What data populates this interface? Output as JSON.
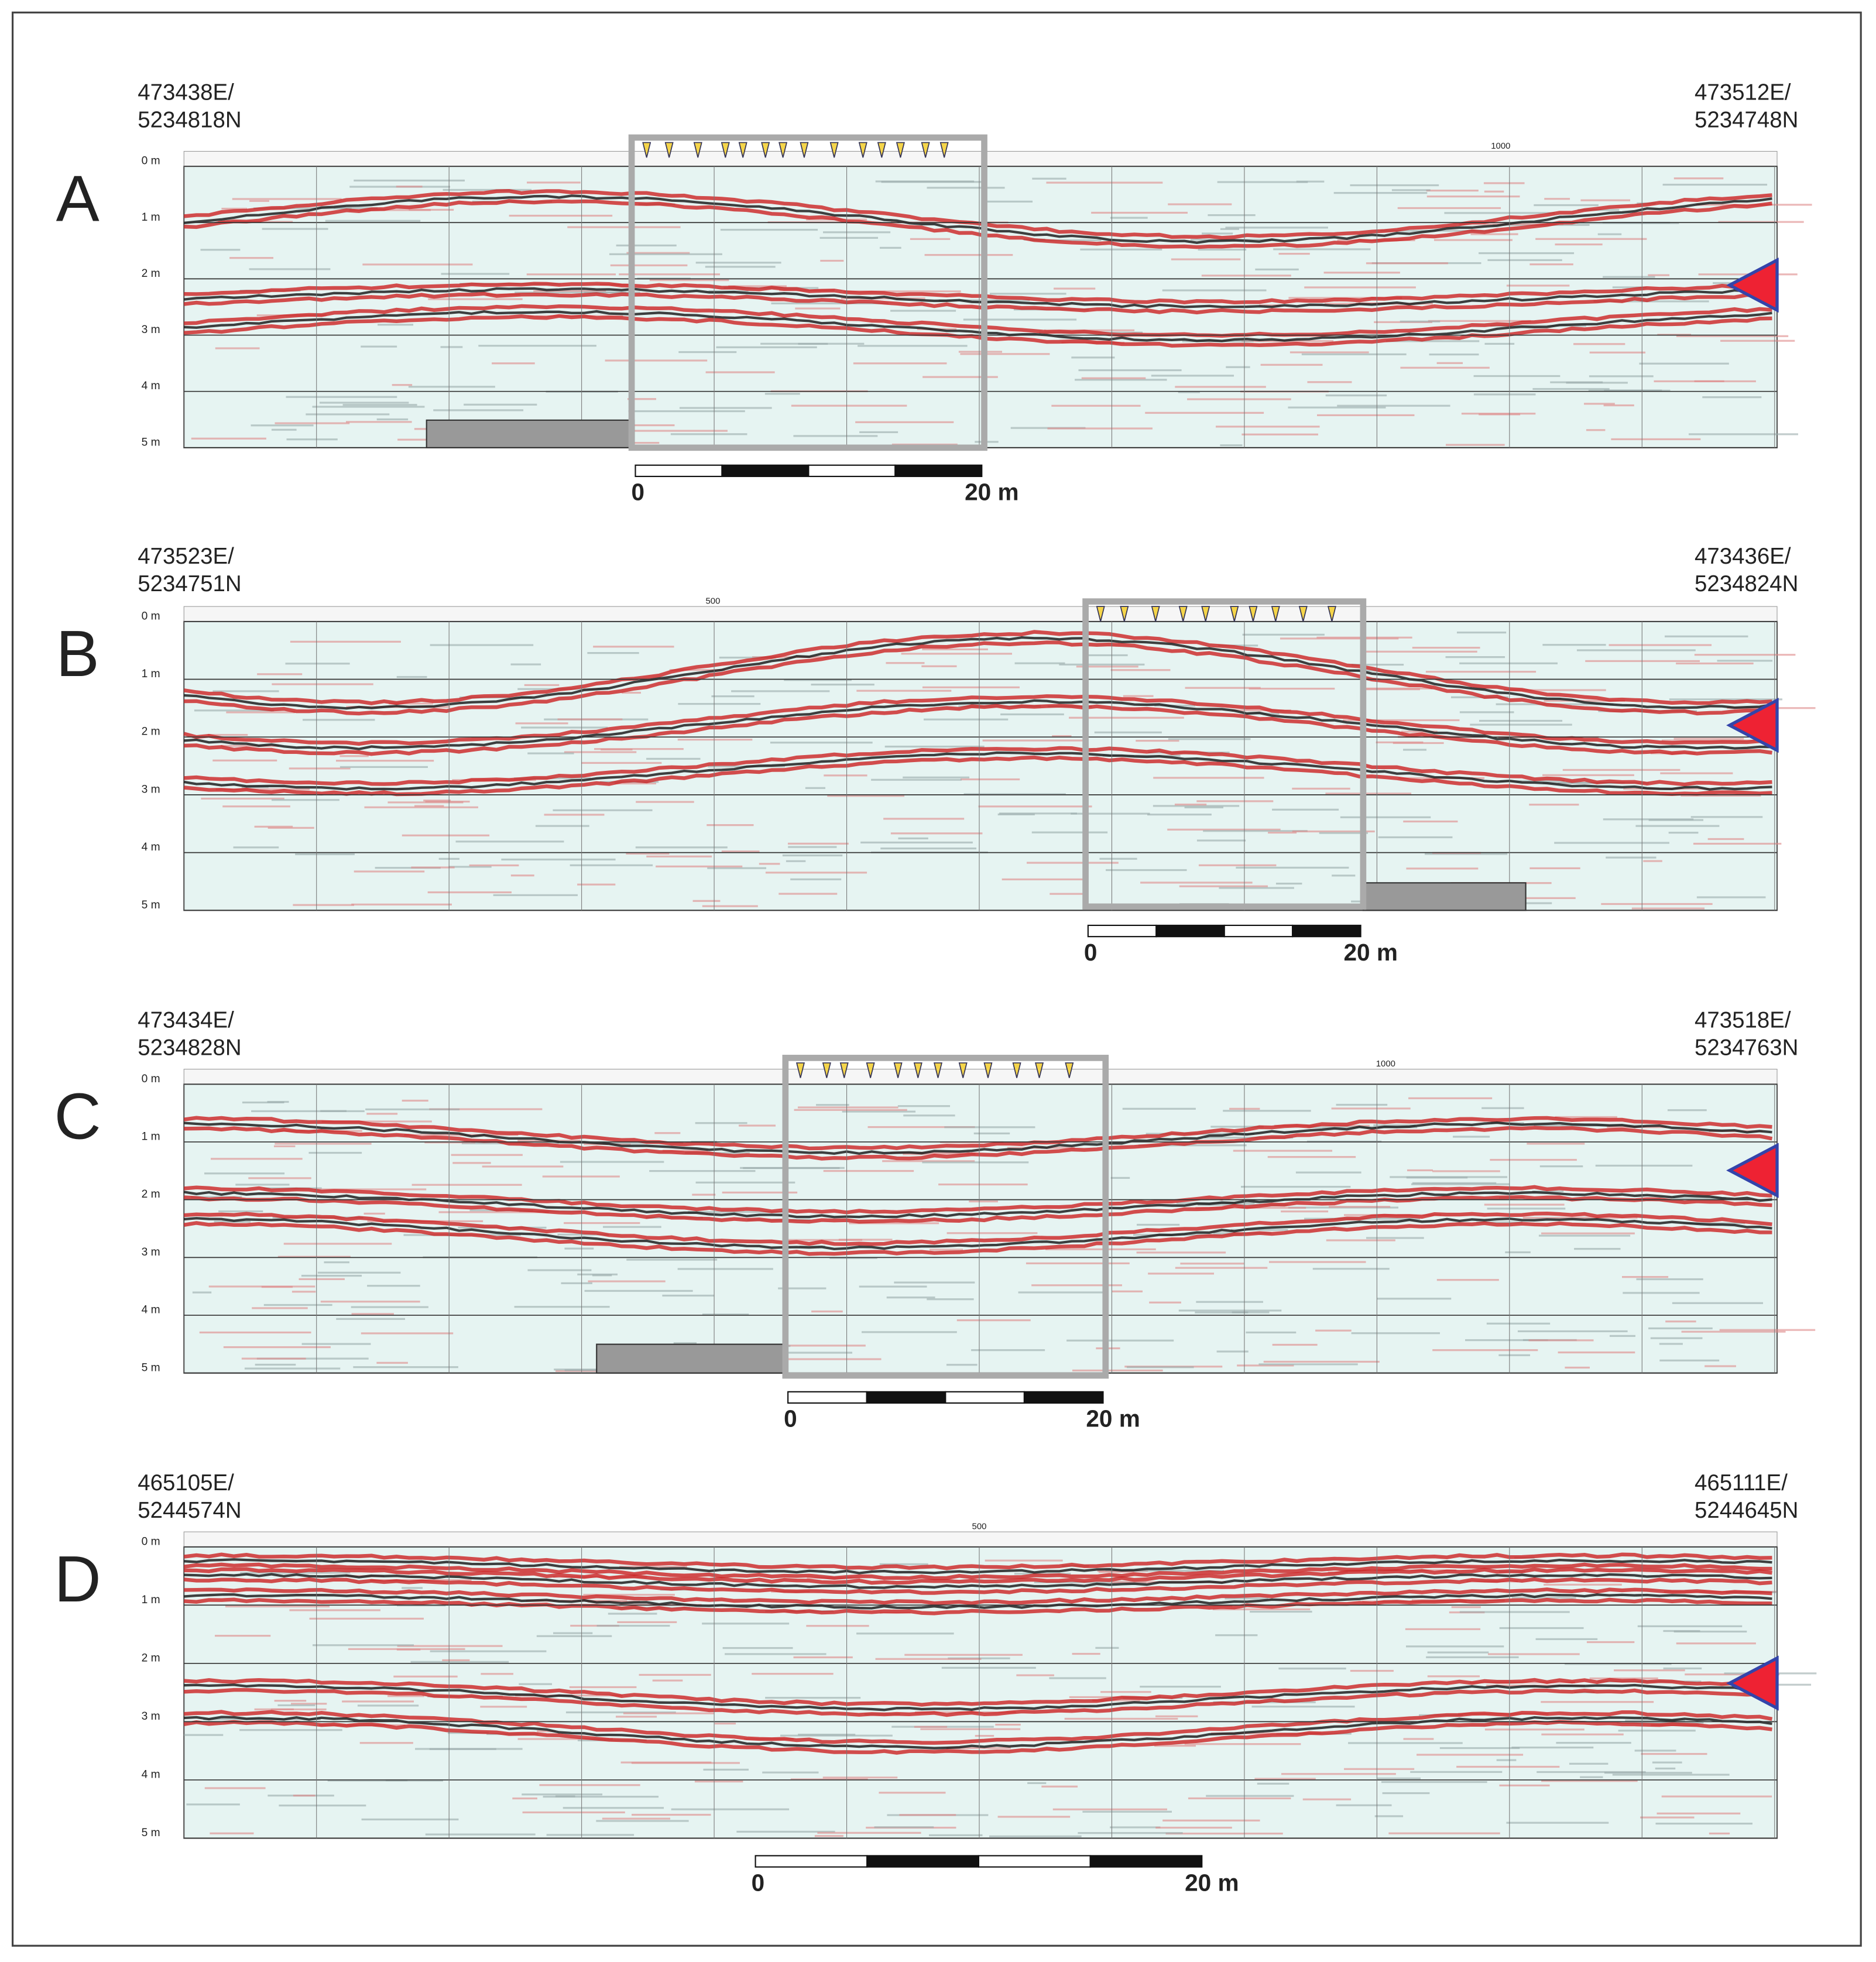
{
  "panels": [
    {
      "label": "A",
      "start": {
        "easting": "473438E/",
        "northing": "5234818N"
      },
      "end": {
        "easting": "473512E/",
        "northing": "5234748N"
      },
      "depth_labels": [
        "0 m",
        "1 m",
        "2 m",
        "3 m",
        "4 m",
        "5 m"
      ],
      "trace_label": "1000",
      "scale_bar": {
        "start": "0",
        "end": "20 m"
      }
    },
    {
      "label": "B",
      "start": {
        "easting": "473523E/",
        "northing": "5234751N"
      },
      "end": {
        "easting": "473436E/",
        "northing": "5234824N"
      },
      "depth_labels": [
        "0 m",
        "1 m",
        "2 m",
        "3 m",
        "4 m",
        "5 m"
      ],
      "trace_label": "500",
      "scale_bar": {
        "start": "0",
        "end": "20 m"
      }
    },
    {
      "label": "C",
      "start": {
        "easting": "473434E/",
        "northing": "5234828N"
      },
      "end": {
        "easting": "473518E/",
        "northing": "5234763N"
      },
      "depth_labels": [
        "0 m",
        "1 m",
        "2 m",
        "3 m",
        "4 m",
        "5 m"
      ],
      "trace_label": "1000",
      "scale_bar": {
        "start": "0",
        "end": "20 m"
      }
    },
    {
      "label": "D",
      "start": {
        "easting": "465105E/",
        "northing": "5244574N"
      },
      "end": {
        "easting": "465111E/",
        "northing": "5244645N"
      },
      "depth_labels": [
        "0 m",
        "1 m",
        "2 m",
        "3 m",
        "4 m",
        "5 m"
      ],
      "trace_label": "500",
      "scale_bar": {
        "start": "0",
        "end": "20 m"
      }
    }
  ]
}
